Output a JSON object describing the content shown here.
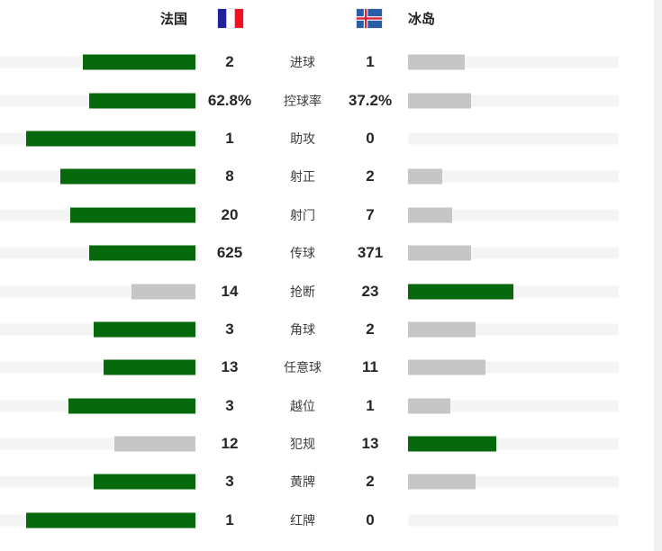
{
  "header": {
    "home_team": "法国",
    "away_team": "冰岛"
  },
  "chart_data": {
    "type": "bar",
    "subtype": "bilateral-team-comparison",
    "categories": [
      "进球",
      "控球率",
      "助攻",
      "射正",
      "射门",
      "传球",
      "抢断",
      "角球",
      "任意球",
      "越位",
      "犯规",
      "黄牌",
      "红牌"
    ],
    "series": [
      {
        "name": "法国",
        "values": [
          2,
          62.8,
          1,
          8,
          20,
          625,
          14,
          3,
          13,
          3,
          12,
          3,
          1
        ],
        "display": [
          "2",
          "62.8%",
          "1",
          "8",
          "20",
          "625",
          "14",
          "3",
          "13",
          "3",
          "12",
          "3",
          "1"
        ]
      },
      {
        "name": "冰岛",
        "values": [
          1,
          37.2,
          0,
          2,
          7,
          371,
          23,
          2,
          11,
          1,
          13,
          2,
          0
        ],
        "display": [
          "1",
          "37.2%",
          "0",
          "2",
          "7",
          "371",
          "23",
          "2",
          "11",
          "1",
          "13",
          "2",
          "0"
        ]
      }
    ],
    "legend_position": "top",
    "bar_rule": "bar length proportional to value/(home+away); higher value rendered green, lower gray, zero hidden"
  },
  "colors": {
    "bar_win": "#066a0d",
    "bar_lose": "#c6c6c6",
    "track": "#f4f4f5",
    "value_text": "#262626",
    "label_text": "#3d3d3d",
    "france_flag_blue": "#21209c",
    "france_flag_red": "#f50f20",
    "iceland_flag_blue": "#2a5da8",
    "iceland_flag_red": "#dc1e35",
    "flag_white": "#ffffff"
  }
}
